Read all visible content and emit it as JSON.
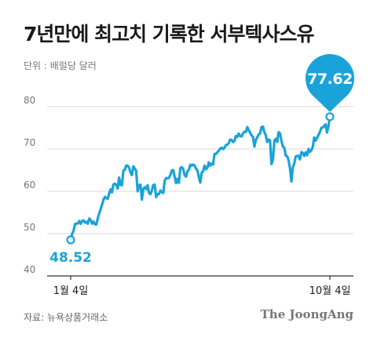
{
  "title": "7년만에 최고치 기록한 서부텍사스유",
  "unit_label": "단위 : 배럴당 달러",
  "source": "자료: 뉴욕상품거래소",
  "brand": "The JoongAng",
  "colors": {
    "line": "#1aa3d8",
    "grid": "#d9d9d9",
    "text": "#1a1a1a",
    "pin_text": "#ffffff"
  },
  "chart_data": {
    "type": "line",
    "title": "7년만에 최고치 기록한 서부텍사스유",
    "ylabel": "단위 : 배럴당 달러",
    "ylim": [
      40,
      85
    ],
    "yticks": [
      40,
      50,
      60,
      70,
      80
    ],
    "xticks": [
      "1월 4일",
      "10월 4일"
    ],
    "grid": true,
    "start_label": "48.52",
    "end_label": "77.62",
    "series": [
      {
        "values": [
          48.52,
          49.93,
          50.63,
          52.24,
          52.36,
          52.42,
          52.98,
          52.31,
          52.98,
          53.13,
          52.61,
          52.77,
          52.34,
          53.55,
          53.24,
          52.35,
          52.85,
          52.2,
          52.15,
          53.57,
          54.76,
          55.69,
          56.85,
          57.97,
          58.68,
          58.36,
          58.24,
          59.47,
          60.46,
          59.75,
          61.6,
          61.8,
          61.5,
          60.64,
          63.22,
          61.5,
          61.45,
          64.9,
          65.05,
          66.09,
          66.02,
          65.61,
          64.44,
          63.83,
          65.88,
          65.39,
          64.8,
          60.0,
          61.44,
          61.55,
          58.04,
          60.55,
          60.97,
          60.52,
          61.42,
          59.6,
          59.32,
          60.18,
          61.45,
          61.56,
          58.65,
          59.33,
          59.32,
          60.18,
          59.77,
          59.6,
          62.44,
          63.13,
          63.07,
          63.15,
          63.86,
          64.92,
          65.01,
          63.43,
          61.91,
          62.94,
          62.02,
          65.49,
          65.69,
          65.28,
          63.82,
          63.46,
          64.71,
          65.08,
          66.27,
          66.05,
          66.32,
          66.08,
          65.37,
          64.92,
          63.36,
          62.05,
          64.43,
          64.71,
          66.07,
          65.21,
          65.58,
          66.85,
          66.05,
          66.5,
          66.32,
          68.83,
          68.81,
          69.23,
          69.62,
          70.05,
          70.29,
          69.96,
          70.29,
          70.91,
          71.04,
          71.35,
          72.22,
          72.12,
          71.64,
          71.91,
          73.06,
          72.85,
          73.62,
          73.05,
          72.94,
          73.66,
          74.05,
          74.01,
          75.16,
          74.44,
          73.85,
          73.16,
          72.91,
          70.56,
          72.11,
          72.76,
          73.43,
          73.62,
          75.18,
          75.26,
          73.95,
          73.19,
          71.65,
          72.23,
          71.94,
          66.42,
          67.42,
          71.91,
          72.39,
          71.65,
          73.95,
          73.62,
          71.91,
          70.56,
          70.3,
          68.44,
          68.29,
          67.29,
          65.46,
          62.32,
          65.64,
          66.59,
          68.23,
          68.36,
          68.38,
          67.54,
          69.26,
          69.03,
          68.35,
          69.21,
          68.5,
          69.99,
          69.29,
          69.72,
          70.46,
          72.69,
          71.97,
          72.61,
          73.3,
          73.98,
          74.98,
          75.03,
          75.45,
          75.83,
          73.88,
          75.37,
          77.62
        ]
      }
    ]
  }
}
